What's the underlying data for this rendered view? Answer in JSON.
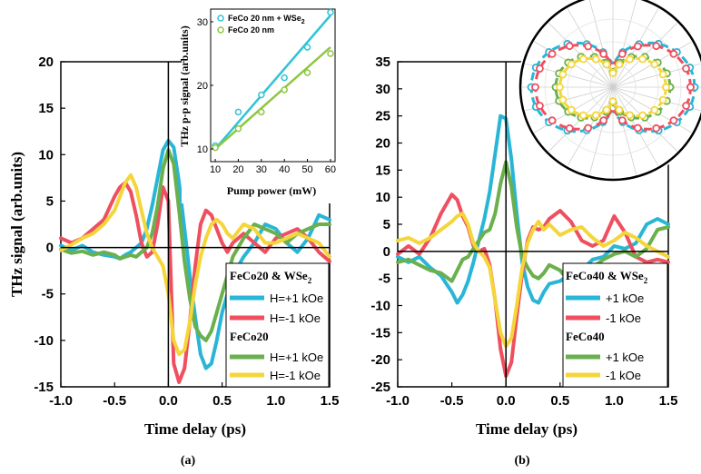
{
  "colors": {
    "blue": "#29b6d6",
    "red": "#ef4f5f",
    "green": "#6ab04c",
    "yellow": "#f4d63a",
    "inset_cyan": "#2ec4d6",
    "inset_green": "#8dc63f"
  },
  "chart_data": [
    {
      "id": "a",
      "type": "line",
      "caption": "(a)",
      "xlabel": "Time delay (ps)",
      "ylabel": "THz signal (arb.units)",
      "xlim": [
        -1.0,
        1.5
      ],
      "ylim": [
        -15,
        20
      ],
      "xticks": [
        -1.0,
        -0.5,
        0.0,
        0.5,
        1.0,
        1.5
      ],
      "xtick_labels": [
        "-1.0",
        "-0.5",
        "0.0",
        "0.5",
        "1.0",
        "1.5"
      ],
      "yticks": [
        -15,
        -10,
        -5,
        0,
        5,
        10,
        15,
        20
      ],
      "ytick_labels": [
        "-15",
        "-10",
        "-5",
        "0",
        "5",
        "10",
        "15",
        "20"
      ],
      "legend": {
        "group1_title": "FeCo20 & WSe",
        "group1_sub": "2",
        "group2_title": "FeCo20",
        "labels": [
          "H=+1 kOe",
          "H=-1 kOe",
          "H=+1 kOe",
          "H=-1 kOe"
        ]
      },
      "series": [
        {
          "name": "FeCo20 & WSe2 H=+1 kOe",
          "color_key": "blue",
          "x": [
            -1.0,
            -0.9,
            -0.8,
            -0.7,
            -0.6,
            -0.5,
            -0.45,
            -0.4,
            -0.35,
            -0.3,
            -0.25,
            -0.2,
            -0.15,
            -0.1,
            -0.05,
            0.0,
            0.05,
            0.1,
            0.15,
            0.2,
            0.25,
            0.3,
            0.35,
            0.4,
            0.45,
            0.5,
            0.55,
            0.6,
            0.7,
            0.8,
            0.9,
            1.0,
            1.1,
            1.2,
            1.3,
            1.4,
            1.5
          ],
          "y": [
            0.2,
            -0.3,
            0.2,
            -0.5,
            -0.8,
            -1.0,
            -1.2,
            -0.8,
            -0.5,
            0.0,
            0.5,
            2.0,
            4.5,
            7.5,
            10.5,
            11.5,
            10.8,
            7.0,
            2.0,
            -3.0,
            -7.5,
            -11.5,
            -13.0,
            -12.5,
            -10.0,
            -7.0,
            -5.0,
            -3.0,
            -1.0,
            0.5,
            2.5,
            2.0,
            0.5,
            -0.5,
            1.0,
            3.5,
            3.0
          ]
        },
        {
          "name": "FeCo20 & WSe2 H=-1 kOe",
          "color_key": "red",
          "x": [
            -1.0,
            -0.9,
            -0.8,
            -0.7,
            -0.6,
            -0.5,
            -0.45,
            -0.4,
            -0.35,
            -0.3,
            -0.25,
            -0.2,
            -0.15,
            -0.1,
            -0.05,
            0.0,
            0.05,
            0.1,
            0.15,
            0.2,
            0.25,
            0.3,
            0.35,
            0.4,
            0.45,
            0.5,
            0.55,
            0.6,
            0.7,
            0.8,
            0.9,
            1.0,
            1.1,
            1.2,
            1.3,
            1.4,
            1.5
          ],
          "y": [
            1.0,
            0.5,
            1.0,
            2.0,
            3.0,
            5.5,
            6.5,
            7.0,
            6.0,
            3.5,
            0.5,
            -1.0,
            -0.5,
            2.5,
            6.5,
            5.0,
            -12.5,
            -14.5,
            -13.0,
            -8.0,
            -2.0,
            2.5,
            4.0,
            3.5,
            2.0,
            0.5,
            -0.5,
            0.5,
            1.5,
            0.5,
            -0.5,
            1.0,
            1.5,
            2.0,
            1.0,
            -0.5,
            -1.5
          ]
        },
        {
          "name": "FeCo20 H=+1 kOe",
          "color_key": "green",
          "x": [
            -1.0,
            -0.9,
            -0.8,
            -0.7,
            -0.6,
            -0.5,
            -0.45,
            -0.4,
            -0.35,
            -0.3,
            -0.25,
            -0.2,
            -0.15,
            -0.1,
            -0.05,
            0.0,
            0.05,
            0.1,
            0.15,
            0.2,
            0.25,
            0.3,
            0.35,
            0.4,
            0.45,
            0.5,
            0.55,
            0.6,
            0.7,
            0.8,
            0.9,
            1.0,
            1.1,
            1.2,
            1.3,
            1.4,
            1.5
          ],
          "y": [
            -0.2,
            -0.6,
            -0.4,
            -0.8,
            -0.5,
            -0.8,
            -1.2,
            -1.0,
            -0.8,
            -1.0,
            -0.5,
            0.0,
            1.5,
            4.5,
            8.5,
            10.5,
            9.0,
            4.0,
            -1.5,
            -5.5,
            -8.5,
            -9.5,
            -10.0,
            -9.0,
            -7.0,
            -5.0,
            -3.0,
            -1.0,
            1.0,
            2.5,
            2.0,
            1.5,
            0.5,
            1.5,
            2.0,
            2.5,
            2.5
          ]
        },
        {
          "name": "FeCo20 H=-1 kOe",
          "color_key": "yellow",
          "x": [
            -1.0,
            -0.9,
            -0.8,
            -0.7,
            -0.6,
            -0.5,
            -0.45,
            -0.4,
            -0.35,
            -0.3,
            -0.25,
            -0.2,
            -0.15,
            -0.1,
            -0.05,
            0.0,
            0.05,
            0.1,
            0.15,
            0.2,
            0.25,
            0.3,
            0.35,
            0.4,
            0.45,
            0.5,
            0.55,
            0.6,
            0.7,
            0.8,
            0.9,
            1.0,
            1.1,
            1.2,
            1.3,
            1.4,
            1.5
          ],
          "y": [
            -0.3,
            0.3,
            1.0,
            1.5,
            2.5,
            4.0,
            5.5,
            7.0,
            7.8,
            6.5,
            4.0,
            1.5,
            0.0,
            -1.0,
            -2.0,
            -5.0,
            -10.0,
            -11.5,
            -11.0,
            -8.0,
            -4.0,
            -1.0,
            1.0,
            2.5,
            3.0,
            2.5,
            1.5,
            1.0,
            2.5,
            2.0,
            0.5,
            0.5,
            1.0,
            1.5,
            1.0,
            0.5,
            -1.0
          ]
        }
      ],
      "inset": {
        "type": "scatter+line",
        "xlabel": "Pump power (mW)",
        "ylabel": "THz p-p signal (arb.units)",
        "xlim": [
          8,
          62
        ],
        "ylim": [
          8,
          32
        ],
        "xticks": [
          10,
          20,
          30,
          40,
          50,
          60
        ],
        "yticks": [
          10,
          20,
          30
        ],
        "legend": [
          "FeCo 20 nm + WSe",
          "FeCo 20 nm"
        ],
        "legend_sub": "2",
        "series": [
          {
            "name": "FeCo 20 nm + WSe2",
            "color_key": "inset_cyan",
            "x": [
              10,
              20,
              30,
              40,
              50,
              60
            ],
            "y": [
              10.5,
              15.8,
              18.5,
              21.2,
              26.0,
              31.5
            ],
            "fit": [
              [
                10,
                10.0
              ],
              [
                60,
                31.0
              ]
            ]
          },
          {
            "name": "FeCo 20 nm",
            "color_key": "inset_green",
            "x": [
              10,
              20,
              30,
              40,
              50,
              60
            ],
            "y": [
              10.2,
              13.2,
              15.8,
              19.3,
              22.0,
              25.0
            ],
            "fit": [
              [
                10,
                10.0
              ],
              [
                60,
                26.0
              ]
            ]
          }
        ]
      }
    },
    {
      "id": "b",
      "type": "line",
      "caption": "(b)",
      "xlabel": "Time delay (ps)",
      "ylabel": "",
      "xlim": [
        -1.0,
        1.5
      ],
      "ylim": [
        -25,
        35
      ],
      "xticks": [
        -1.0,
        -0.5,
        0.0,
        0.5,
        1.0,
        1.5
      ],
      "xtick_labels": [
        "-1.0",
        "-0.5",
        "0.0",
        "0.5",
        "1.0",
        "1.5"
      ],
      "yticks": [
        -25,
        -20,
        -15,
        -10,
        -5,
        0,
        5,
        10,
        15,
        20,
        25,
        30,
        35
      ],
      "ytick_labels": [
        "-25",
        "-20",
        "-15",
        "-10",
        "-5",
        "0",
        "5",
        "10",
        "15",
        "20",
        "25",
        "30",
        "35"
      ],
      "legend": {
        "group1_title": "FeCo40  & WSe",
        "group1_sub": "2",
        "group2_title": "FeCo40",
        "labels": [
          "+1 kOe",
          "-1 kOe",
          "+1 kOe",
          "-1 kOe"
        ]
      },
      "series": [
        {
          "name": "FeCo40 & WSe2 +1 kOe",
          "color_key": "blue",
          "x": [
            -1.0,
            -0.9,
            -0.8,
            -0.7,
            -0.6,
            -0.5,
            -0.45,
            -0.4,
            -0.35,
            -0.3,
            -0.25,
            -0.2,
            -0.15,
            -0.1,
            -0.05,
            0.0,
            0.05,
            0.1,
            0.15,
            0.2,
            0.25,
            0.3,
            0.35,
            0.4,
            0.5,
            0.6,
            0.7,
            0.8,
            0.9,
            1.0,
            1.1,
            1.2,
            1.3,
            1.4,
            1.5
          ],
          "y": [
            -1.0,
            -2.0,
            -1.0,
            -3.0,
            -4.5,
            -7.5,
            -9.5,
            -8.0,
            -5.5,
            -2.0,
            2.0,
            6.0,
            11.0,
            18.0,
            25.0,
            24.5,
            17.0,
            7.0,
            -2.0,
            -6.5,
            -9.0,
            -9.5,
            -7.5,
            -6.0,
            -5.5,
            -4.0,
            -3.5,
            -1.5,
            -1.0,
            1.0,
            0.5,
            1.5,
            5.0,
            6.0,
            5.0
          ]
        },
        {
          "name": "FeCo40 & WSe2 -1 kOe",
          "color_key": "red",
          "x": [
            -1.0,
            -0.9,
            -0.8,
            -0.7,
            -0.6,
            -0.5,
            -0.45,
            -0.4,
            -0.35,
            -0.3,
            -0.25,
            -0.2,
            -0.15,
            -0.1,
            -0.05,
            0.0,
            0.05,
            0.1,
            0.15,
            0.2,
            0.25,
            0.3,
            0.35,
            0.4,
            0.5,
            0.6,
            0.7,
            0.8,
            0.9,
            1.0,
            1.1,
            1.2,
            1.3,
            1.4,
            1.5
          ],
          "y": [
            -0.5,
            1.0,
            -0.5,
            2.5,
            7.0,
            10.5,
            9.5,
            6.5,
            4.5,
            1.0,
            0.0,
            0.5,
            -2.5,
            -9.0,
            -18.0,
            -23.0,
            -20.5,
            -12.0,
            -4.0,
            2.0,
            4.5,
            4.0,
            4.5,
            6.0,
            7.5,
            5.5,
            2.0,
            1.0,
            2.0,
            6.5,
            3.5,
            -1.0,
            -2.0,
            -1.5,
            -2.0
          ]
        },
        {
          "name": "FeCo40 +1 kOe",
          "color_key": "green",
          "x": [
            -1.0,
            -0.9,
            -0.8,
            -0.7,
            -0.6,
            -0.5,
            -0.45,
            -0.4,
            -0.35,
            -0.3,
            -0.25,
            -0.2,
            -0.15,
            -0.1,
            -0.05,
            0.0,
            0.05,
            0.1,
            0.15,
            0.2,
            0.25,
            0.3,
            0.35,
            0.4,
            0.5,
            0.6,
            0.7,
            0.8,
            0.9,
            1.0,
            1.1,
            1.2,
            1.3,
            1.4,
            1.5
          ],
          "y": [
            -2.0,
            -1.5,
            -2.5,
            -3.5,
            -4.0,
            -5.5,
            -3.5,
            -1.5,
            -1.0,
            0.5,
            2.0,
            3.5,
            4.0,
            7.0,
            12.5,
            16.5,
            12.0,
            4.5,
            -1.0,
            -3.0,
            -4.5,
            -5.0,
            -4.0,
            -2.5,
            -3.5,
            -6.0,
            -4.5,
            -3.0,
            -1.5,
            -0.5,
            0.0,
            -1.0,
            0.5,
            4.0,
            4.5
          ]
        },
        {
          "name": "FeCo40 -1 kOe",
          "color_key": "yellow",
          "x": [
            -1.0,
            -0.9,
            -0.8,
            -0.7,
            -0.6,
            -0.5,
            -0.45,
            -0.4,
            -0.35,
            -0.3,
            -0.25,
            -0.2,
            -0.15,
            -0.1,
            -0.05,
            0.0,
            0.05,
            0.1,
            0.15,
            0.2,
            0.25,
            0.3,
            0.35,
            0.4,
            0.5,
            0.6,
            0.7,
            0.8,
            0.9,
            1.0,
            1.1,
            1.2,
            1.3,
            1.4,
            1.5
          ],
          "y": [
            2.0,
            2.5,
            1.5,
            2.5,
            4.0,
            5.5,
            6.5,
            7.0,
            5.0,
            1.5,
            0.0,
            -1.0,
            -3.0,
            -9.0,
            -15.0,
            -17.5,
            -16.0,
            -10.0,
            -3.0,
            1.5,
            4.0,
            5.5,
            4.0,
            5.0,
            3.0,
            4.0,
            4.5,
            2.5,
            1.0,
            2.0,
            3.5,
            2.5,
            1.0,
            0.0,
            -1.0
          ]
        }
      ],
      "inset": {
        "type": "polar",
        "angle_ticks_deg": [
          0,
          15,
          30,
          45,
          60,
          75,
          90,
          105,
          120,
          135,
          150,
          165,
          180,
          195,
          210,
          225,
          240,
          255,
          270,
          285,
          300,
          315,
          330,
          345
        ],
        "series": [
          {
            "name": "FeCo40 & WSe2 +1 kOe",
            "color_key": "blue",
            "amplitude": 1.0
          },
          {
            "name": "FeCo40 & WSe2 -1 kOe",
            "color_key": "red",
            "amplitude": 0.95
          },
          {
            "name": "FeCo40 +1 kOe",
            "color_key": "green",
            "amplitude": 0.7
          },
          {
            "name": "FeCo40 -1 kOe",
            "color_key": "yellow",
            "amplitude": 0.65
          }
        ]
      }
    }
  ]
}
